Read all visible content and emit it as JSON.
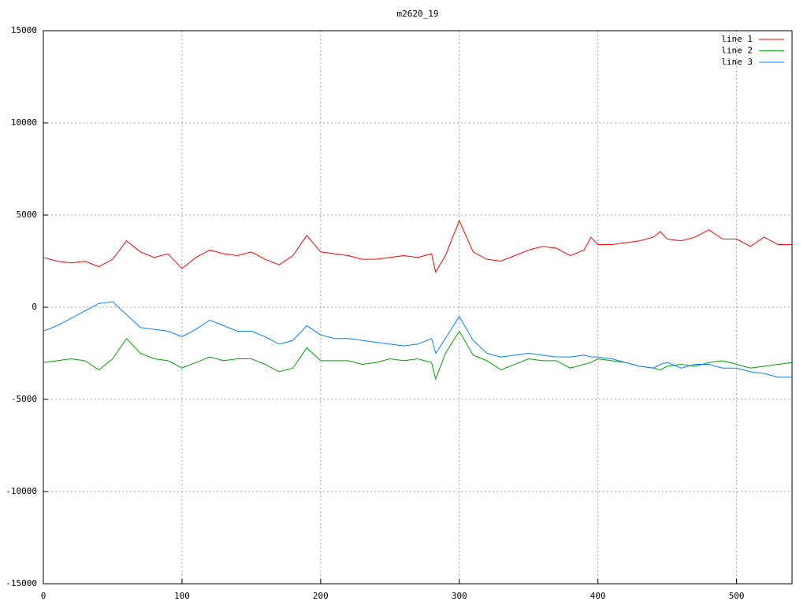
{
  "chart_data": {
    "type": "line",
    "title": "m2620_19",
    "x": [
      0,
      10,
      20,
      30,
      40,
      50,
      60,
      70,
      80,
      90,
      100,
      110,
      120,
      130,
      140,
      150,
      160,
      170,
      180,
      190,
      200,
      210,
      220,
      230,
      240,
      250,
      260,
      270,
      280,
      283,
      290,
      300,
      310,
      320,
      330,
      340,
      350,
      360,
      370,
      380,
      390,
      395,
      400,
      410,
      420,
      430,
      440,
      445,
      450,
      460,
      470,
      480,
      490,
      500,
      510,
      520,
      530,
      540
    ],
    "series": [
      {
        "name": "line 1",
        "color": "#ff0000",
        "values": [
          2700,
          2500,
          2400,
          2500,
          2200,
          2600,
          3600,
          3000,
          2700,
          2900,
          2100,
          2700,
          3100,
          2900,
          2800,
          3000,
          2600,
          2300,
          2800,
          3900,
          3000,
          2900,
          2800,
          2600,
          2600,
          2700,
          2800,
          2700,
          2900,
          1900,
          2800,
          4700,
          3000,
          2600,
          2500,
          2800,
          3100,
          3300,
          3200,
          2800,
          3100,
          3800,
          3400,
          3400,
          3500,
          3600,
          3800,
          4100,
          3700,
          3600,
          3800,
          4200,
          3700,
          3700,
          3300,
          3800,
          3400,
          3400
        ]
      },
      {
        "name": "line 2",
        "color": "#00a000",
        "values": [
          -3000,
          -2900,
          -2800,
          -2900,
          -3400,
          -2800,
          -1700,
          -2500,
          -2800,
          -2900,
          -3300,
          -3000,
          -2700,
          -2900,
          -2800,
          -2800,
          -3100,
          -3500,
          -3300,
          -2200,
          -2900,
          -2900,
          -2900,
          -3100,
          -3000,
          -2800,
          -2900,
          -2800,
          -3000,
          -3900,
          -2500,
          -1300,
          -2600,
          -2900,
          -3400,
          -3100,
          -2800,
          -2900,
          -2900,
          -3300,
          -3100,
          -3000,
          -2800,
          -2900,
          -3000,
          -3200,
          -3300,
          -3400,
          -3200,
          -3100,
          -3200,
          -3000,
          -2900,
          -3100,
          -3300,
          -3200,
          -3100,
          -3000
        ]
      },
      {
        "name": "line 3",
        "color": "#0080ff",
        "values": [
          -1300,
          -1000,
          -600,
          -200,
          200,
          300,
          -400,
          -1100,
          -1200,
          -1300,
          -1600,
          -1200,
          -700,
          -1000,
          -1300,
          -1300,
          -1600,
          -2000,
          -1800,
          -1000,
          -1500,
          -1700,
          -1700,
          -1800,
          -1900,
          -2000,
          -2100,
          -2000,
          -1700,
          -2500,
          -1700,
          -500,
          -1800,
          -2500,
          -2700,
          -2600,
          -2500,
          -2600,
          -2700,
          -2700,
          -2600,
          -2700,
          -2700,
          -2800,
          -3000,
          -3200,
          -3300,
          -3100,
          -3000,
          -3300,
          -3100,
          -3100,
          -3300,
          -3300,
          -3500,
          -3600,
          -3800,
          -3800
        ]
      }
    ],
    "xlim": [
      0,
      540
    ],
    "xticks": [
      0,
      100,
      200,
      300,
      400,
      500
    ],
    "ylim": [
      -15000,
      15000
    ],
    "yticks": [
      -15000,
      -10000,
      -5000,
      0,
      5000,
      10000,
      15000
    ],
    "grid": true,
    "legend": "top-right"
  }
}
